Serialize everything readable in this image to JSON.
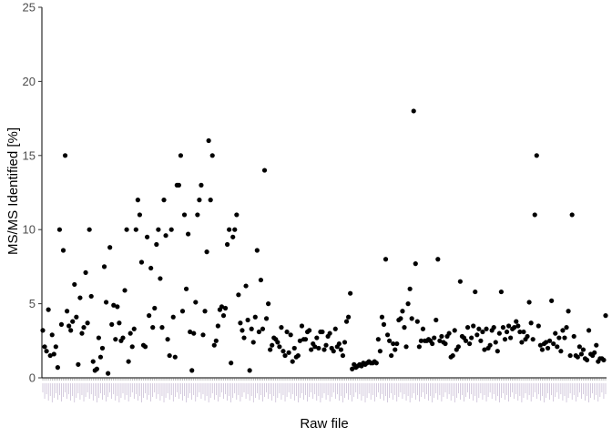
{
  "chart_data": {
    "type": "scatter",
    "title": "",
    "xlabel": "Raw file",
    "ylabel": "MS/MS Identified [%]",
    "ylim": [
      0,
      25
    ],
    "yticks": [
      0,
      5,
      10,
      15,
      20,
      25
    ],
    "grid": false,
    "legend": "none",
    "x_tick_labels_legible": false,
    "point_color": "#000000",
    "y": [
      3.2,
      2.1,
      1.8,
      4.6,
      1.5,
      2.9,
      1.6,
      2.1,
      0.7,
      10.0,
      3.6,
      8.6,
      15.0,
      4.5,
      3.5,
      3.2,
      3.8,
      6.3,
      4.1,
      0.9,
      5.4,
      3.0,
      3.4,
      7.1,
      3.7,
      10.0,
      5.5,
      1.1,
      0.5,
      0.6,
      2.7,
      1.4,
      2.0,
      7.5,
      5.1,
      0.3,
      8.8,
      3.6,
      4.9,
      2.6,
      4.8,
      3.7,
      2.5,
      2.7,
      5.9,
      10.0,
      1.1,
      3.0,
      2.1,
      3.3,
      10.0,
      12.0,
      11.0,
      7.8,
      2.2,
      2.1,
      9.5,
      4.2,
      7.4,
      3.4,
      4.7,
      9.0,
      10.0,
      6.7,
      3.4,
      12.0,
      9.6,
      2.6,
      1.5,
      10.0,
      4.1,
      1.4,
      13.0,
      13.0,
      15.0,
      4.5,
      11.0,
      6.0,
      9.7,
      3.1,
      0.5,
      3.0,
      5.1,
      11.0,
      12.0,
      13.0,
      2.9,
      4.5,
      8.5,
      16.0,
      12.0,
      15.0,
      2.2,
      2.5,
      3.5,
      4.6,
      4.8,
      4.2,
      4.7,
      9.0,
      10.0,
      1.0,
      9.5,
      10.0,
      11.0,
      5.6,
      3.7,
      3.2,
      2.7,
      6.2,
      3.9,
      0.5,
      3.3,
      2.4,
      4.1,
      8.6,
      3.1,
      6.6,
      3.3,
      14.0,
      4.0,
      5.0,
      1.9,
      2.2,
      2.7,
      2.6,
      2.4,
      2.1,
      3.4,
      1.8,
      1.5,
      3.1,
      1.7,
      2.9,
      1.1,
      2.0,
      1.4,
      1.5,
      2.5,
      3.5,
      2.6,
      2.6,
      3.1,
      3.2,
      1.9,
      2.3,
      2.1,
      2.7,
      2.0,
      3.1,
      3.1,
      1.9,
      2.2,
      2.8,
      3.0,
      2.0,
      1.8,
      3.3,
      2.1,
      2.3,
      1.9,
      1.5,
      2.4,
      3.8,
      4.1,
      5.7,
      0.6,
      0.9,
      0.7,
      0.8,
      0.9,
      0.8,
      1.0,
      0.9,
      1.0,
      1.1,
      1.0,
      1.0,
      1.1,
      1.0,
      2.6,
      1.8,
      4.1,
      3.6,
      8.0,
      2.9,
      2.5,
      1.5,
      2.3,
      1.9,
      2.3,
      3.9,
      4.0,
      4.5,
      3.4,
      2.1,
      5.0,
      6.0,
      4.0,
      18.0,
      7.7,
      3.8,
      2.1,
      2.5,
      3.3,
      2.5,
      2.5,
      2.6,
      2.5,
      2.3,
      2.7,
      3.9,
      8.0,
      2.5,
      2.8,
      2.4,
      2.3,
      2.8,
      3.0,
      1.4,
      1.5,
      3.2,
      1.9,
      2.1,
      6.5,
      2.8,
      2.7,
      2.5,
      3.4,
      2.3,
      2.7,
      3.5,
      5.8,
      2.9,
      3.3,
      2.5,
      3.1,
      1.9,
      3.3,
      2.0,
      2.2,
      3.2,
      3.4,
      2.4,
      1.8,
      3.0,
      5.8,
      3.4,
      2.6,
      3.1,
      3.5,
      2.7,
      3.3,
      3.4,
      3.8,
      3.5,
      3.1,
      2.4,
      3.1,
      2.6,
      2.8,
      5.1,
      3.7,
      2.6,
      11.0,
      15.0,
      3.5,
      2.2,
      1.9,
      2.3,
      2.4,
      2.0,
      2.5,
      5.2,
      2.3,
      3.0,
      2.1,
      2.7,
      1.8,
      3.2,
      2.7,
      3.4,
      4.5,
      1.5,
      11.0,
      2.8,
      1.5,
      1.4,
      2.1,
      1.6,
      1.9,
      1.3,
      1.2,
      3.2,
      1.6,
      1.5,
      1.7,
      2.2,
      1.1,
      1.3,
      1.3,
      1.2,
      4.2
    ]
  }
}
